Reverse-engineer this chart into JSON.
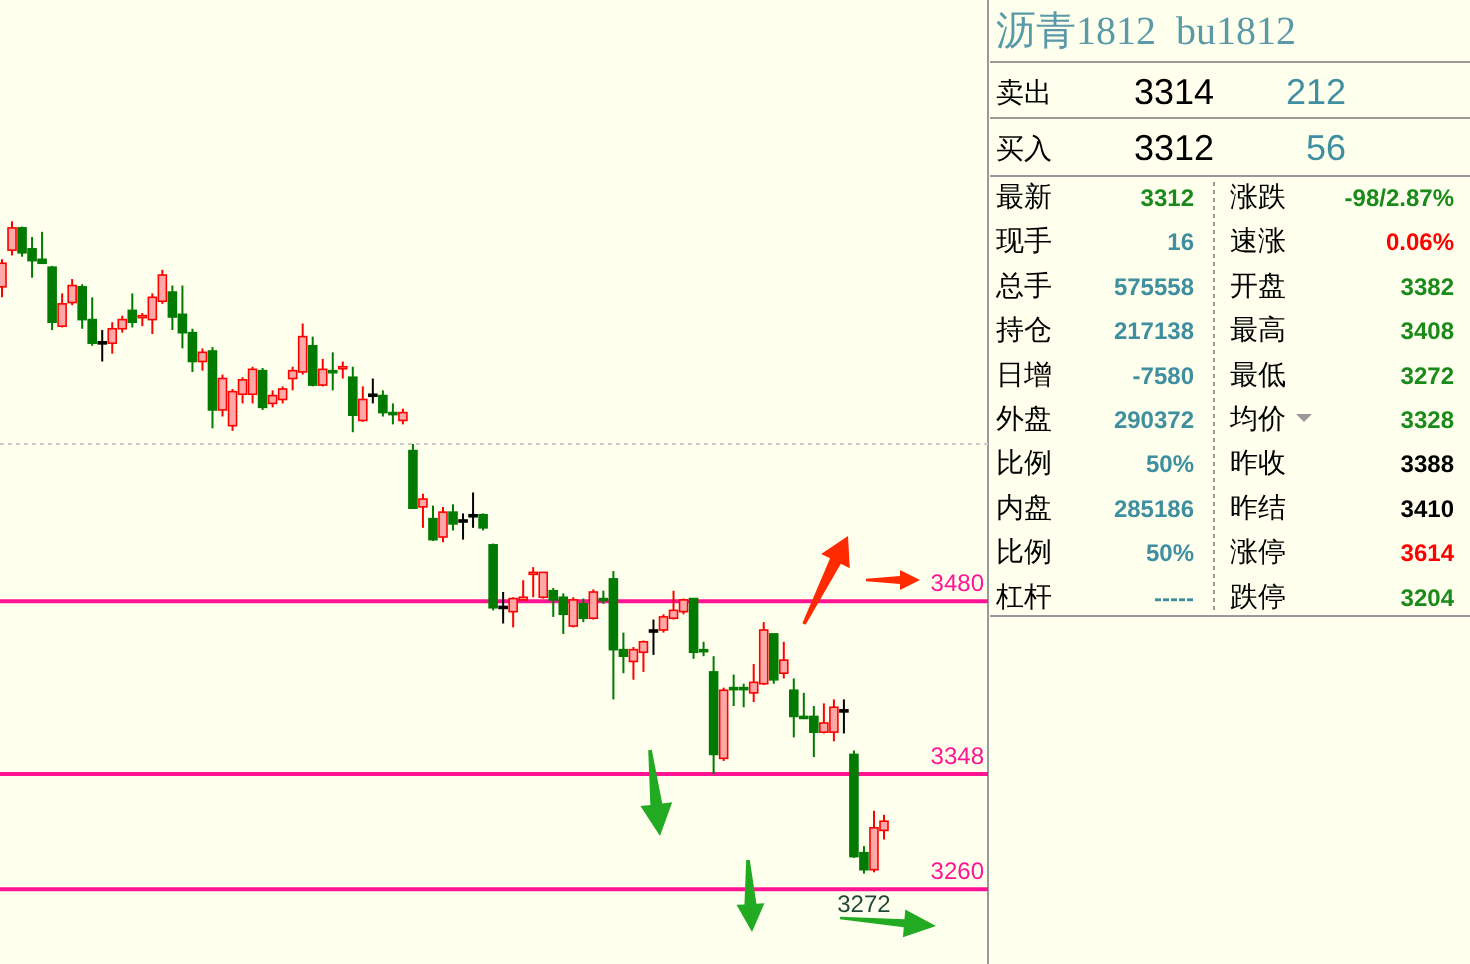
{
  "chart_data": [
    {
      "type": "candlestick",
      "categories": [
        null,
        null,
        null,
        null,
        null,
        null,
        null,
        null,
        null,
        null,
        null,
        null,
        null,
        null,
        null,
        null,
        null,
        null,
        null,
        null,
        null,
        null,
        null,
        null,
        null,
        null,
        null,
        null,
        null,
        null,
        null,
        null,
        null,
        null,
        null,
        null,
        null,
        null,
        null,
        null,
        null,
        null,
        null,
        null,
        null,
        null,
        null,
        null,
        null,
        null,
        null,
        null,
        null,
        null,
        null,
        null,
        null,
        null,
        null,
        null,
        null,
        null,
        null,
        null,
        null,
        null,
        null,
        null,
        null,
        null,
        null,
        null,
        null,
        null,
        null,
        null,
        null,
        null,
        null,
        null,
        null,
        null,
        null,
        null,
        null,
        null,
        null,
        null,
        null
      ],
      "ohlc": [
        [
          3720,
          3741,
          3712,
          3738
        ],
        [
          3748,
          3770,
          3744,
          3765
        ],
        [
          3765,
          3766,
          3743,
          3746
        ],
        [
          3749,
          3758,
          3727,
          3740
        ],
        [
          3741,
          3762,
          3738,
          3738
        ],
        [
          3735,
          3736,
          3687,
          3693
        ],
        [
          3690,
          3715,
          3689,
          3707
        ],
        [
          3708,
          3726,
          3706,
          3721
        ],
        [
          3720,
          3722,
          3688,
          3695
        ],
        [
          3695,
          3712,
          3675,
          3677
        ],
        [
          3678,
          3687,
          3663,
          3678
        ],
        [
          3677,
          3693,
          3669,
          3688
        ],
        [
          3688,
          3698,
          3685,
          3695
        ],
        [
          3702,
          3715,
          3689,
          3693
        ],
        [
          3697,
          3700,
          3690,
          3698
        ],
        [
          3695,
          3715,
          3684,
          3712
        ],
        [
          3709,
          3733,
          3707,
          3729
        ],
        [
          3716,
          3721,
          3687,
          3697
        ],
        [
          3699,
          3721,
          3673,
          3685
        ],
        [
          3685,
          3688,
          3655,
          3663
        ],
        [
          3663,
          3673,
          3656,
          3670
        ],
        [
          3671,
          3674,
          3612,
          3626
        ],
        [
          3626,
          3653,
          3621,
          3650
        ],
        [
          3614,
          3642,
          3610,
          3640
        ],
        [
          3638,
          3651,
          3631,
          3649
        ],
        [
          3638,
          3659,
          3631,
          3657
        ],
        [
          3656,
          3658,
          3626,
          3628
        ],
        [
          3631,
          3641,
          3628,
          3637
        ],
        [
          3634,
          3644,
          3631,
          3642
        ],
        [
          3650,
          3659,
          3641,
          3656
        ],
        [
          3655,
          3692,
          3653,
          3682
        ],
        [
          3675,
          3682,
          3644,
          3645
        ],
        [
          3645,
          3665,
          3644,
          3657
        ],
        [
          3656,
          3670,
          3641,
          3655
        ],
        [
          3658,
          3663,
          3650,
          3659
        ],
        [
          3651,
          3659,
          3609,
          3622
        ],
        [
          3618,
          3644,
          3617,
          3634
        ],
        [
          3638,
          3650,
          3631,
          3638
        ],
        [
          3637,
          3641,
          3621,
          3624
        ],
        [
          3624,
          3631,
          3615,
          3623
        ],
        [
          3618,
          3627,
          3615,
          3624
        ],
        [
          3595,
          3600,
          3551,
          3551
        ],
        [
          3552,
          3562,
          3536,
          3558
        ],
        [
          3543,
          3553,
          3526,
          3527
        ],
        [
          3529,
          3552,
          3525,
          3548
        ],
        [
          3548,
          3554,
          3534,
          3539
        ],
        [
          3542,
          3547,
          3527,
          3542
        ],
        [
          3546,
          3563,
          3536,
          3546
        ],
        [
          3546,
          3547,
          3534,
          3536
        ],
        [
          3523,
          3524,
          3473,
          3475
        ],
        [
          3476,
          3487,
          3463,
          3476
        ],
        [
          3472,
          3483,
          3460,
          3482
        ],
        [
          3481,
          3496,
          3481,
          3483
        ],
        [
          3501,
          3506,
          3483,
          3502
        ],
        [
          3483,
          3502,
          3482,
          3502
        ],
        [
          3488,
          3490,
          3468,
          3481
        ],
        [
          3483,
          3486,
          3455,
          3470
        ],
        [
          3461,
          3483,
          3460,
          3481
        ],
        [
          3478,
          3482,
          3464,
          3467
        ],
        [
          3467,
          3489,
          3466,
          3487
        ],
        [
          3482,
          3488,
          3478,
          3481
        ],
        [
          3497,
          3503,
          3405,
          3443
        ],
        [
          3443,
          3456,
          3425,
          3438
        ],
        [
          3434,
          3445,
          3420,
          3443
        ],
        [
          3441,
          3450,
          3426,
          3449
        ],
        [
          3458,
          3466,
          3439,
          3458
        ],
        [
          3458,
          3470,
          3456,
          3468
        ],
        [
          3467,
          3488,
          3466,
          3473
        ],
        [
          3472,
          3482,
          3470,
          3481
        ],
        [
          3482,
          3482,
          3436,
          3441
        ],
        [
          3443,
          3449,
          3438,
          3442
        ],
        [
          3426,
          3438,
          3348,
          3363
        ],
        [
          3360,
          3414,
          3358,
          3412
        ],
        [
          3414,
          3424,
          3400,
          3413
        ],
        [
          3414,
          3417,
          3399,
          3413
        ],
        [
          3410,
          3432,
          3403,
          3418
        ],
        [
          3417,
          3464,
          3416,
          3458
        ],
        [
          3455,
          3455,
          3417,
          3420
        ],
        [
          3425,
          3449,
          3421,
          3435
        ],
        [
          3412,
          3421,
          3376,
          3392
        ],
        [
          3392,
          3410,
          3390,
          3391
        ],
        [
          3392,
          3400,
          3361,
          3380
        ],
        [
          3380,
          3402,
          3379,
          3387
        ],
        [
          3380,
          3405,
          3373,
          3399
        ],
        [
          3397,
          3405,
          3379,
          3397
        ],
        [
          3363,
          3366,
          3284,
          3285
        ],
        [
          3288,
          3293,
          3272,
          3275
        ],
        [
          3275,
          3320,
          3273,
          3307
        ],
        [
          3305,
          3317,
          3298,
          3312
        ]
      ],
      "ylim": [
        3203,
        3939
      ],
      "ref_lines": [
        {
          "axis": "y",
          "value": 3480,
          "label": "3480",
          "color": "#ff1493"
        },
        {
          "axis": "y",
          "value": 3348,
          "label": "3348",
          "color": "#ff1493"
        },
        {
          "axis": "y",
          "value": 3260,
          "label": "3260",
          "color": "#ff1493"
        },
        {
          "axis": "y",
          "value": 3600,
          "color": "#cccccc",
          "line_style": "dotted"
        }
      ],
      "annotations": [
        {
          "text": "3272",
          "y": 3272
        }
      ]
    },
    {
      "type": "other",
      "title": "沥青1812  bu1812",
      "annotations": [
        "卖出",
        "3314",
        "212",
        "买入",
        "3312",
        "56",
        "最新",
        "3312",
        "涨跌",
        "-98/2.87%",
        "现手",
        "16",
        "速涨",
        "0.06%",
        "总手",
        "575558",
        "开盘",
        "3382",
        "持仓",
        "217138",
        "最高",
        "3408",
        "日增",
        "-7580",
        "最低",
        "3272",
        "外盘",
        "290372",
        "均价",
        "3328",
        "比例",
        "50%",
        "昨收",
        "3388",
        "内盘",
        "285186",
        "昨结",
        "3410",
        "比例",
        "50%",
        "涨停",
        "3614",
        "杠杆",
        "-----",
        "跌停",
        "3204"
      ]
    }
  ]
}
